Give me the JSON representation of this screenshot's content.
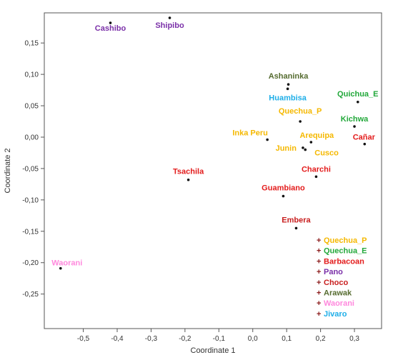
{
  "chart_data": {
    "type": "scatter",
    "xlabel": "Coordinate 1",
    "ylabel": "Coordinate 2",
    "xlim": [
      -0.615,
      0.38
    ],
    "ylim": [
      -0.305,
      0.198
    ],
    "xticks": [
      "-0,5",
      "-0,4",
      "-0,3",
      "-0,2",
      "-0,1",
      "0,0",
      "0,1",
      "0,2",
      "0,3"
    ],
    "xtick_values": [
      -0.5,
      -0.4,
      -0.3,
      -0.2,
      -0.1,
      0.0,
      0.1,
      0.2,
      0.3
    ],
    "yticks": [
      "0,15",
      "0,10",
      "0,05",
      "0,00",
      "-0,05",
      "-0,10",
      "-0,15",
      "-0,20",
      "-0,25"
    ],
    "ytick_values": [
      0.15,
      0.1,
      0.05,
      0.0,
      -0.05,
      -0.1,
      -0.15,
      -0.2,
      -0.25
    ],
    "points": [
      {
        "label": "Cashibo",
        "x": -0.42,
        "y": 0.182,
        "group": "Pano"
      },
      {
        "label": "Shipibo",
        "x": -0.245,
        "y": 0.19,
        "group": "Pano"
      },
      {
        "label": "Ashaninka",
        "x": 0.105,
        "y": 0.084,
        "group": "Arawak"
      },
      {
        "label": "Huambisa",
        "x": 0.103,
        "y": 0.077,
        "group": "Jivaro"
      },
      {
        "label": "Quichua_E",
        "x": 0.31,
        "y": 0.056,
        "group": "Quechua_E"
      },
      {
        "label": "Quechua_P",
        "x": 0.14,
        "y": 0.025,
        "group": "Quechua_P"
      },
      {
        "label": "Kichwa",
        "x": 0.3,
        "y": 0.017,
        "group": "Quechua_E"
      },
      {
        "label": "Inka Peru",
        "x": 0.043,
        "y": -0.004,
        "group": "Quechua_P"
      },
      {
        "label": "Arequipa",
        "x": 0.172,
        "y": -0.008,
        "group": "Quechua_P"
      },
      {
        "label": "Junin",
        "x": 0.148,
        "y": -0.017,
        "group": "Quechua_P"
      },
      {
        "label": "Cusco",
        "x": 0.155,
        "y": -0.02,
        "group": "Quechua_P"
      },
      {
        "label": "Cañar",
        "x": 0.33,
        "y": -0.011,
        "group": "Barbacoan"
      },
      {
        "label": "Tsachila",
        "x": -0.19,
        "y": -0.068,
        "group": "Barbacoan"
      },
      {
        "label": "Charchi",
        "x": 0.187,
        "y": -0.063,
        "group": "Barbacoan"
      },
      {
        "label": "Guambiano",
        "x": 0.09,
        "y": -0.094,
        "group": "Barbacoan"
      },
      {
        "label": "Embera",
        "x": 0.128,
        "y": -0.145,
        "group": "Choco"
      },
      {
        "label": "Waorani",
        "x": -0.567,
        "y": -0.209,
        "group": "Waorani"
      }
    ],
    "legend_position": "bottom-right",
    "legend": [
      {
        "name": "Quechua_P",
        "color": "#f5b800"
      },
      {
        "name": "Quechua_E",
        "color": "#22a83a"
      },
      {
        "name": "Barbacoan",
        "color": "#e31b1b"
      },
      {
        "name": "Pano",
        "color": "#7a2fa8"
      },
      {
        "name": "Choco",
        "color": "#c81e1e"
      },
      {
        "name": "Arawak",
        "color": "#556b2f"
      },
      {
        "name": "Waorani",
        "color": "#ff88dd"
      },
      {
        "name": "Jivaro",
        "color": "#1eaee8"
      }
    ],
    "legend_marker": "+",
    "grid": false
  }
}
